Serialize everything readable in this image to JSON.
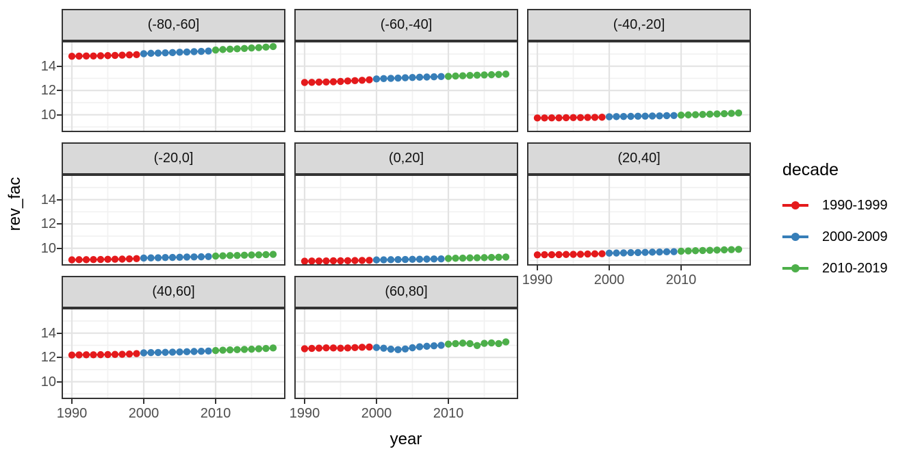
{
  "chart_data": {
    "type": "scatter",
    "title": "",
    "xlabel": "year",
    "ylabel": "rev_fac",
    "grid": true,
    "x": [
      1990,
      1991,
      1992,
      1993,
      1994,
      1995,
      1996,
      1997,
      1998,
      1999,
      2000,
      2001,
      2002,
      2003,
      2004,
      2005,
      2006,
      2007,
      2008,
      2009,
      2010,
      2011,
      2012,
      2013,
      2014,
      2015,
      2016,
      2017,
      2018
    ],
    "x_ticks": [
      1990,
      2000,
      2010
    ],
    "x_minor": [
      1995,
      2005,
      2015
    ],
    "y_ticks": [
      10,
      12,
      14
    ],
    "y_minor": [
      9,
      11,
      13,
      15
    ],
    "xlim": [
      1988.6,
      2019.7
    ],
    "ylim": [
      8.57,
      16.07
    ],
    "legend": {
      "title": "decade",
      "position": "right",
      "entries": [
        {
          "label": "1990-1999",
          "color": "#E41A1C",
          "years": [
            1990,
            1999
          ]
        },
        {
          "label": "2000-2009",
          "color": "#377EB8",
          "years": [
            2000,
            2009
          ]
        },
        {
          "label": "2010-2019",
          "color": "#4DAF4A",
          "years": [
            2010,
            2018
          ]
        }
      ]
    },
    "facets": [
      {
        "label": "(-80,-60]",
        "values": [
          14.82,
          14.83,
          14.84,
          14.84,
          14.86,
          14.87,
          14.89,
          14.91,
          14.93,
          14.95,
          15.03,
          15.06,
          15.08,
          15.1,
          15.12,
          15.15,
          15.17,
          15.2,
          15.22,
          15.25,
          15.33,
          15.37,
          15.4,
          15.43,
          15.46,
          15.5,
          15.53,
          15.57,
          15.62
        ]
      },
      {
        "label": "(-60,-40]",
        "values": [
          12.66,
          12.67,
          12.69,
          12.7,
          12.72,
          12.75,
          12.78,
          12.81,
          12.84,
          12.88,
          12.95,
          12.98,
          13.0,
          13.02,
          13.05,
          13.07,
          13.09,
          13.11,
          13.13,
          13.15,
          13.16,
          13.19,
          13.21,
          13.24,
          13.26,
          13.28,
          13.3,
          13.32,
          13.35
        ]
      },
      {
        "label": "(-40,-20]",
        "values": [
          9.74,
          9.74,
          9.75,
          9.75,
          9.76,
          9.77,
          9.77,
          9.78,
          9.79,
          9.8,
          9.84,
          9.85,
          9.86,
          9.87,
          9.88,
          9.89,
          9.9,
          9.91,
          9.93,
          9.94,
          9.97,
          9.99,
          10.01,
          10.03,
          10.05,
          10.07,
          10.09,
          10.12,
          10.15
        ]
      },
      {
        "label": "(-20,0]",
        "values": [
          9.05,
          9.06,
          9.06,
          9.07,
          9.08,
          9.09,
          9.1,
          9.11,
          9.13,
          9.15,
          9.2,
          9.21,
          9.22,
          9.24,
          9.25,
          9.26,
          9.28,
          9.29,
          9.3,
          9.32,
          9.36,
          9.38,
          9.4,
          9.41,
          9.43,
          9.45,
          9.46,
          9.48,
          9.5
        ]
      },
      {
        "label": "(0,20]",
        "values": [
          8.94,
          8.95,
          8.95,
          8.96,
          8.97,
          8.97,
          8.98,
          8.99,
          9.0,
          9.01,
          9.04,
          9.05,
          9.06,
          9.07,
          9.08,
          9.09,
          9.1,
          9.11,
          9.12,
          9.13,
          9.16,
          9.18,
          9.19,
          9.21,
          9.22,
          9.23,
          9.25,
          9.26,
          9.28
        ]
      },
      {
        "label": "(20,40]",
        "values": [
          9.46,
          9.47,
          9.47,
          9.48,
          9.49,
          9.5,
          9.51,
          9.53,
          9.54,
          9.55,
          9.6,
          9.61,
          9.62,
          9.64,
          9.65,
          9.66,
          9.68,
          9.69,
          9.71,
          9.72,
          9.76,
          9.78,
          9.8,
          9.82,
          9.83,
          9.85,
          9.87,
          9.89,
          9.91
        ]
      },
      {
        "label": "(40,60]",
        "values": [
          12.2,
          12.21,
          12.22,
          12.22,
          12.23,
          12.24,
          12.25,
          12.26,
          12.28,
          12.32,
          12.38,
          12.4,
          12.41,
          12.42,
          12.44,
          12.45,
          12.47,
          12.49,
          12.51,
          12.53,
          12.57,
          12.6,
          12.62,
          12.64,
          12.66,
          12.68,
          12.71,
          12.74,
          12.78
        ]
      },
      {
        "label": "(60,80]",
        "values": [
          12.72,
          12.75,
          12.77,
          12.79,
          12.78,
          12.76,
          12.78,
          12.81,
          12.84,
          12.86,
          12.82,
          12.76,
          12.68,
          12.64,
          12.7,
          12.8,
          12.88,
          12.92,
          12.96,
          13.0,
          13.1,
          13.14,
          13.18,
          13.14,
          12.98,
          13.16,
          13.2,
          13.14,
          13.28
        ]
      }
    ]
  },
  "style": {
    "strip_bg": "#D9D9D9",
    "panel_border": "#333333",
    "grid_major": "#E3E3E3",
    "grid_minor": "#F1F1F1",
    "tick_label_color": "#4D4D4D",
    "title_color": "#000000"
  }
}
